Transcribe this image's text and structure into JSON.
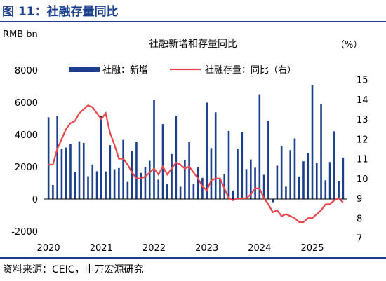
{
  "figure_title": "图 11：社融存量同比",
  "unit_left": "RMB bn",
  "unit_right": "（%）",
  "source_text": "资料来源：CEIC，申万宏源研究",
  "colors": {
    "bars": "#1c3f8c",
    "line": "#e8474b",
    "title": "#1c3f8c",
    "zero_line": "#000000"
  },
  "chart_data": {
    "type": "bar+line",
    "title": "社融新增和存量同比",
    "x_labels": [
      "2020",
      "2021",
      "2022",
      "2023",
      "2024",
      "2025"
    ],
    "y_left": {
      "min": -2000,
      "max": 8000,
      "ticks": [
        -2000,
        0,
        2000,
        4000,
        6000,
        8000
      ]
    },
    "y_right": {
      "min": 7,
      "max": 15,
      "ticks": [
        7,
        8,
        9,
        10,
        11,
        12,
        13,
        14,
        15
      ]
    },
    "legend_position": "top",
    "series": [
      {
        "name": "社融：新增",
        "type": "bar",
        "axis": "left",
        "values": [
          5070,
          870,
          5160,
          3100,
          3190,
          3430,
          1690,
          3580,
          3480,
          1410,
          2140,
          1720,
          5170,
          1710,
          3340,
          1850,
          1920,
          3670,
          1060,
          2960,
          3530,
          1620,
          2000,
          2370,
          6170,
          1200,
          4650,
          910,
          2790,
          5170,
          760,
          2430,
          3530,
          910,
          1990,
          1310,
          5980,
          3160,
          5380,
          1220,
          1560,
          4220,
          530,
          3120,
          4130,
          1850,
          2450,
          1940,
          6500,
          1500,
          4870,
          -200,
          2070,
          3300,
          770,
          3030,
          3760,
          1400,
          2340,
          2850,
          7060,
          2230,
          5890,
          1160,
          2290,
          4200,
          1130,
          2570
        ]
      },
      {
        "name": "社融存量：同比（右）",
        "type": "line",
        "axis": "right",
        "values": [
          10.7,
          10.7,
          11.5,
          12.0,
          12.5,
          12.8,
          12.9,
          13.3,
          13.5,
          13.7,
          13.6,
          13.3,
          13.0,
          13.3,
          12.3,
          11.7,
          11.0,
          11.0,
          10.7,
          10.3,
          10.0,
          10.0,
          10.1,
          10.3,
          10.5,
          10.2,
          10.6,
          10.2,
          10.5,
          10.8,
          10.7,
          10.5,
          10.6,
          10.3,
          10.0,
          9.6,
          9.4,
          9.9,
          10.0,
          10.0,
          9.5,
          9.0,
          8.9,
          9.0,
          9.0,
          9.0,
          9.2,
          9.5,
          9.5,
          9.0,
          8.7,
          8.3,
          8.4,
          8.1,
          8.2,
          8.1,
          8.0,
          7.8,
          7.8,
          8.0,
          8.0,
          8.2,
          8.4,
          8.7,
          8.7,
          8.9,
          9.0,
          8.8
        ]
      }
    ]
  }
}
